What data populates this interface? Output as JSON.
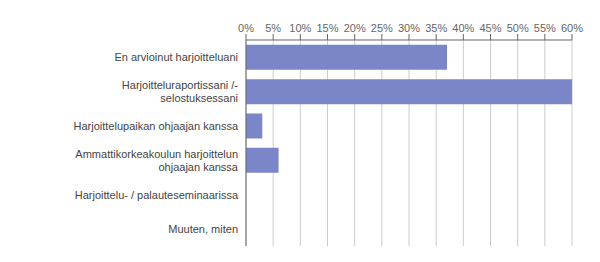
{
  "chart_data": {
    "type": "bar",
    "orientation": "horizontal",
    "categories": [
      "Muuten, miten",
      "Harjoittelu- / palauteseminaarissa",
      "Ammattikorkeakoulun harjoittelun\nohjaajan kanssa",
      "Harjoittelupaikan ohjaajan kanssa",
      "Harjoitteluraportissani /-\nselostuksessani",
      "En arvioinut harjoitteluani"
    ],
    "values": [
      0,
      0,
      6,
      3,
      60,
      37
    ],
    "color": "#7b86c8",
    "xlim": [
      0,
      60
    ],
    "xticks": [
      {
        "value": 0,
        "label": "0%"
      },
      {
        "value": 5,
        "label": "5%"
      },
      {
        "value": 10,
        "label": "10%"
      },
      {
        "value": 15,
        "label": "15%"
      },
      {
        "value": 20,
        "label": "20%"
      },
      {
        "value": 25,
        "label": "25%"
      },
      {
        "value": 30,
        "label": "30%"
      },
      {
        "value": 35,
        "label": "35%"
      },
      {
        "value": 40,
        "label": "40%"
      },
      {
        "value": 45,
        "label": "45%"
      },
      {
        "value": 50,
        "label": "50%"
      },
      {
        "value": 55,
        "label": "55%"
      },
      {
        "value": 60,
        "label": "60%"
      }
    ],
    "grid": true
  }
}
